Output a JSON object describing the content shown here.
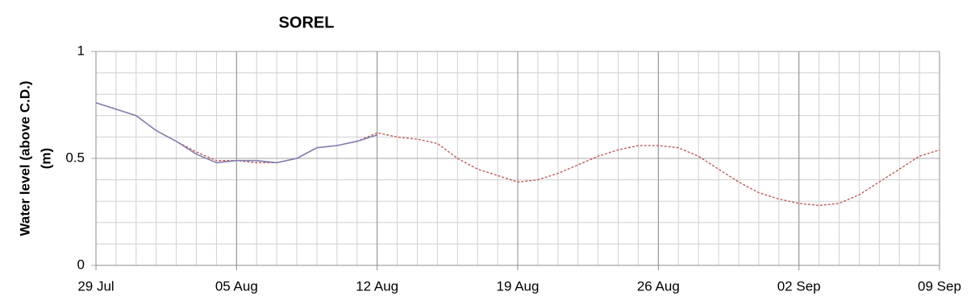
{
  "chart_data": {
    "type": "line",
    "title": "SOREL",
    "y_label": [
      "Water level (above C.D.)",
      "(m)"
    ],
    "x": [
      0,
      1,
      2,
      3,
      4,
      5,
      6,
      7,
      8,
      9,
      10,
      11,
      12,
      13,
      14,
      15,
      16,
      17,
      18,
      19,
      20,
      21,
      22,
      23,
      24,
      25,
      26,
      27,
      28,
      29,
      30,
      31,
      32,
      33,
      34,
      35,
      36,
      37,
      38,
      39,
      40,
      41,
      42
    ],
    "xlim": [
      0,
      42
    ],
    "xticks": [
      {
        "value": 0,
        "label": "29 Jul"
      },
      {
        "value": 7,
        "label": "05 Aug"
      },
      {
        "value": 14,
        "label": "12 Aug"
      },
      {
        "value": 21,
        "label": "19 Aug"
      },
      {
        "value": 28,
        "label": "26 Aug"
      },
      {
        "value": 35,
        "label": "02 Sep"
      },
      {
        "value": 42,
        "label": "09 Sep"
      }
    ],
    "xminor": 1,
    "ylim": [
      0,
      1
    ],
    "yticks": [
      0,
      0.5,
      1
    ],
    "yminor": 0.1,
    "grid": true,
    "series": [
      {
        "color": "#c0504d",
        "dash": "dotted",
        "values": [
          0.76,
          0.73,
          0.7,
          0.63,
          0.58,
          0.53,
          0.49,
          0.49,
          0.48,
          0.48,
          0.5,
          0.55,
          0.56,
          0.58,
          0.62,
          0.6,
          0.59,
          0.57,
          0.5,
          0.45,
          0.42,
          0.39,
          0.4,
          0.43,
          0.47,
          0.51,
          0.54,
          0.56,
          0.56,
          0.55,
          0.51,
          0.45,
          0.39,
          0.34,
          0.31,
          0.29,
          0.28,
          0.29,
          0.33,
          0.39,
          0.45,
          0.51,
          0.54
        ]
      },
      {
        "color": "#7f7fb2",
        "dash": "solid",
        "values": [
          0.76,
          0.73,
          0.7,
          0.63,
          0.58,
          0.52,
          0.48,
          0.49,
          0.49,
          0.48,
          0.5,
          0.55,
          0.56,
          0.58,
          0.61,
          null,
          null,
          null,
          null,
          null,
          null,
          null,
          null,
          null,
          null,
          null,
          null,
          null,
          null,
          null,
          null,
          null,
          null,
          null,
          null,
          null,
          null,
          null,
          null,
          null,
          null,
          null,
          null
        ]
      }
    ]
  }
}
